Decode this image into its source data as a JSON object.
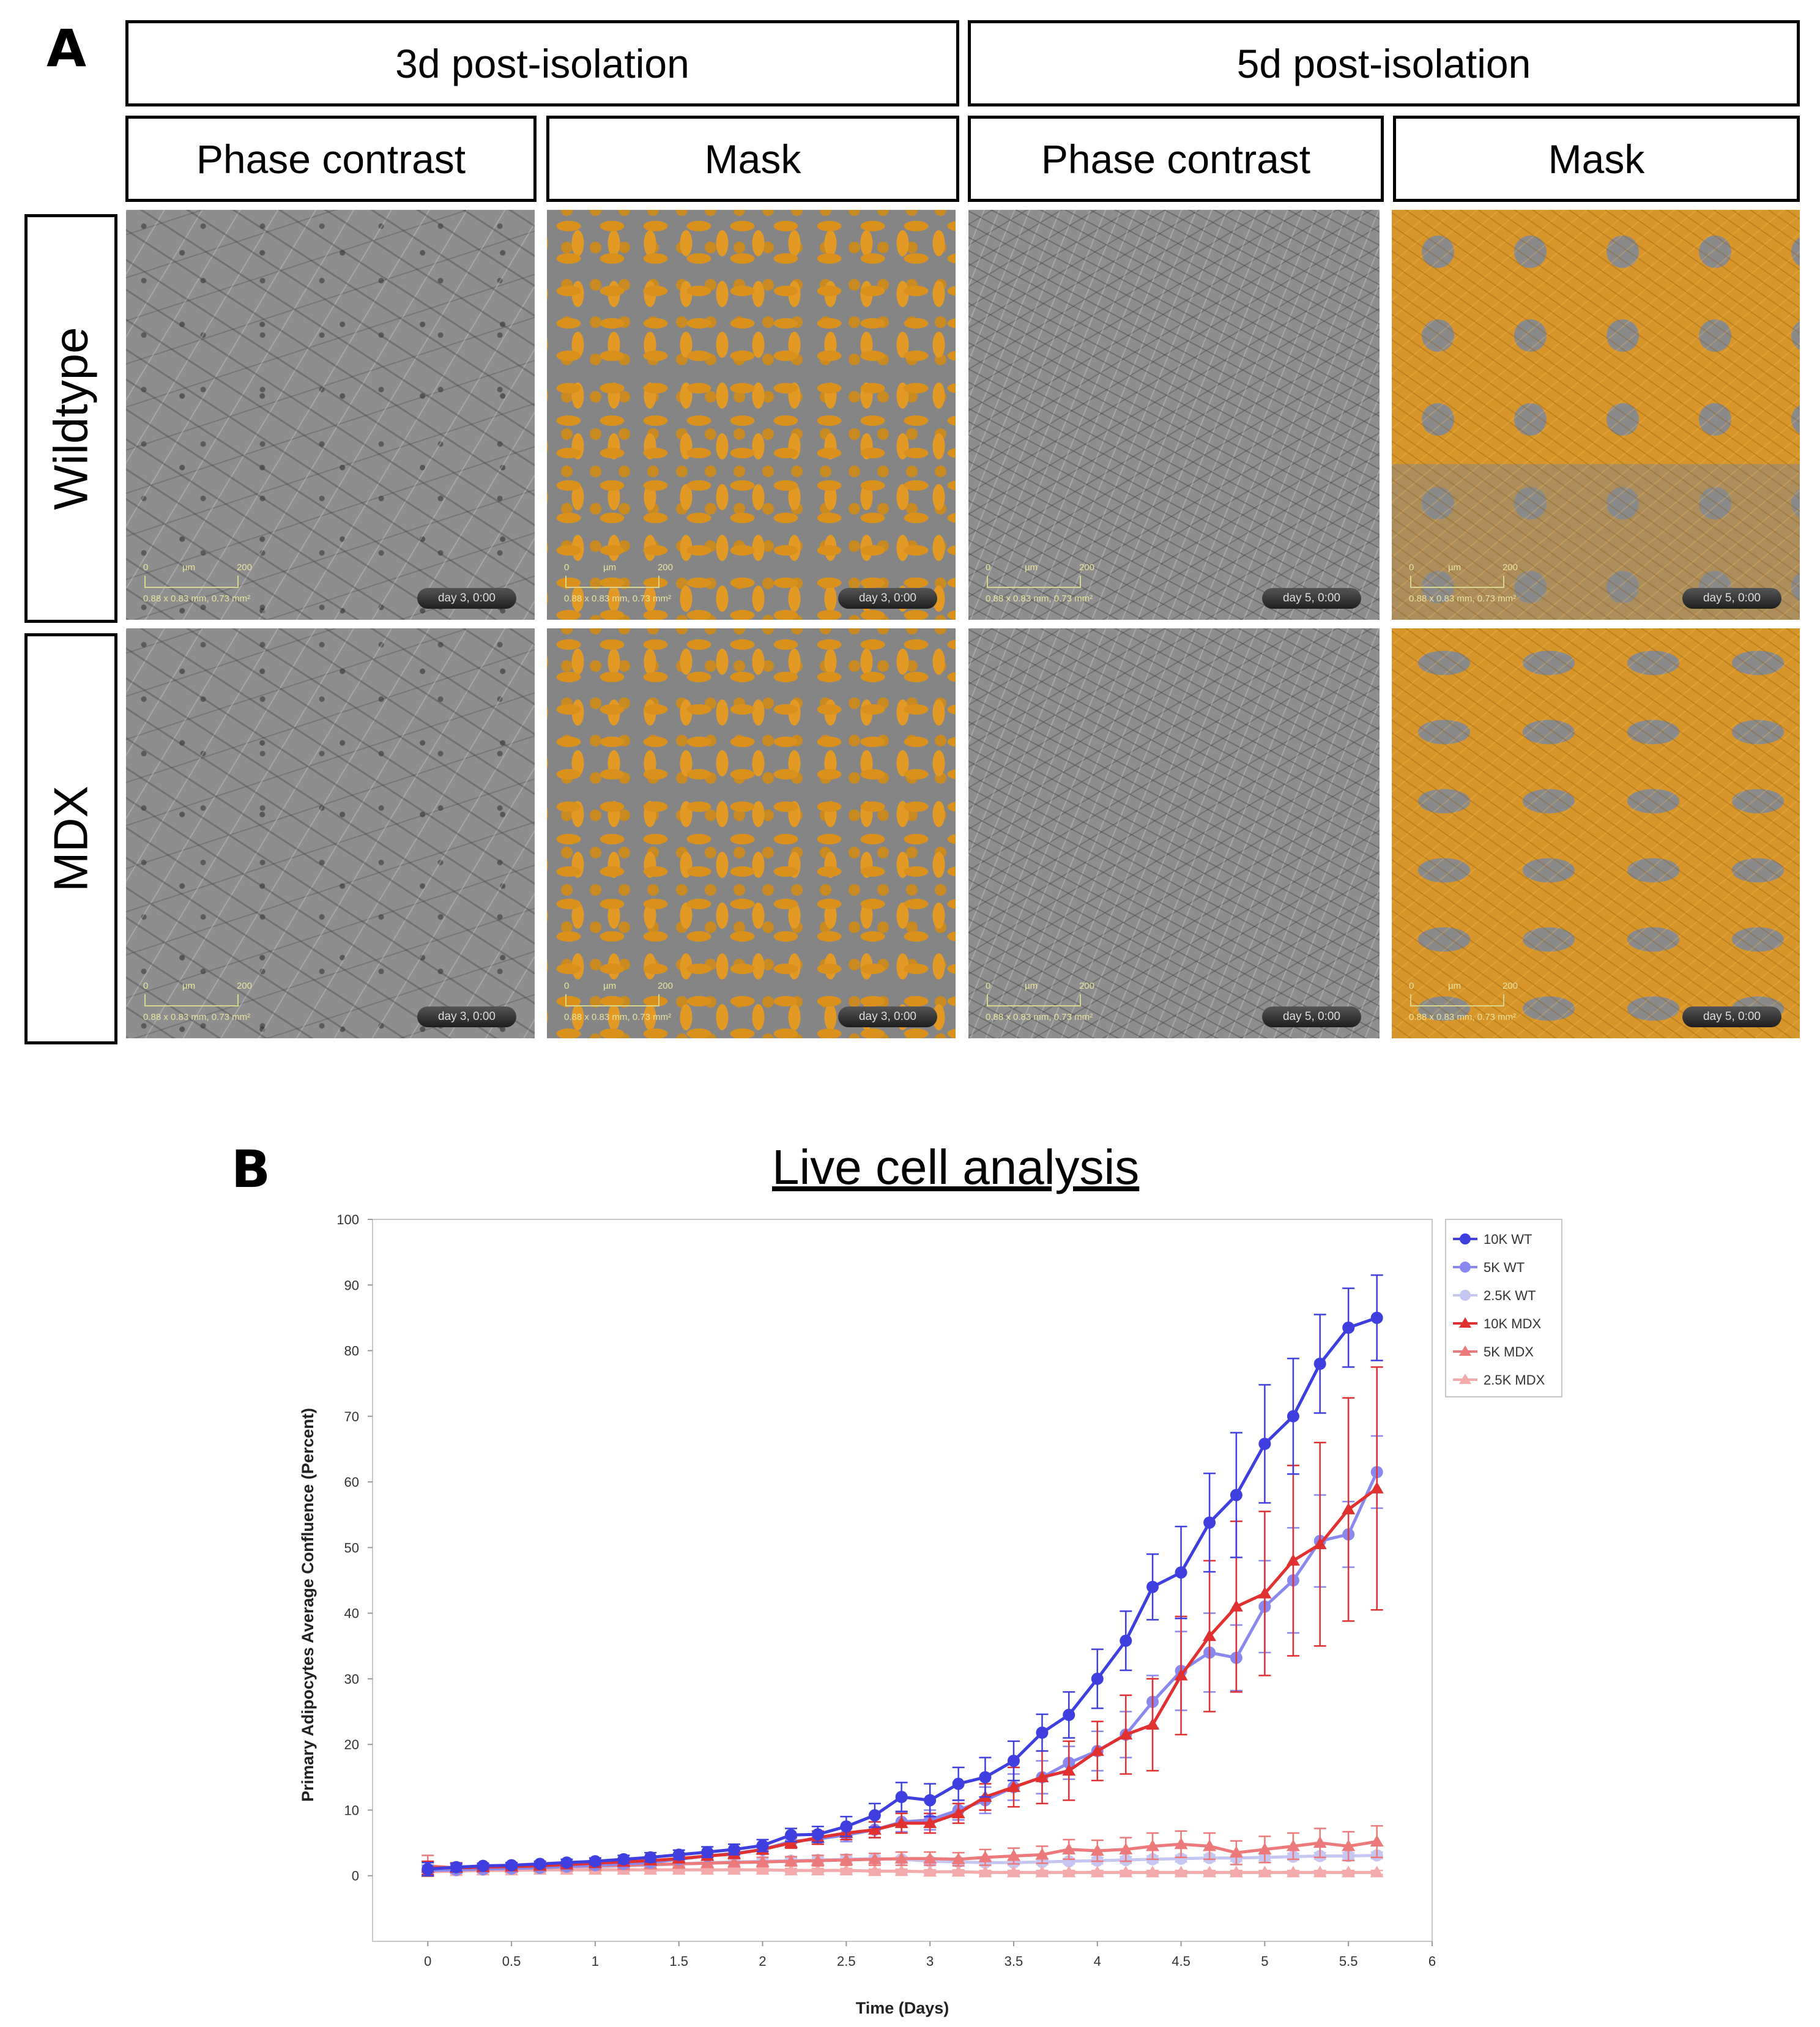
{
  "panel_a": {
    "letter": "A",
    "time_headers": [
      "3d post-isolation",
      "5d post-isolation"
    ],
    "sub_headers": [
      "Phase contrast",
      "Mask",
      "Phase contrast",
      "Mask"
    ],
    "row_labels": [
      "Wildtype",
      "MDX"
    ],
    "scale": {
      "start": "0",
      "unit": "µm",
      "end": "200",
      "dims": "0.88 x 0.83 mm, 0.73 mm²"
    },
    "day_labels": [
      "day 3, 0:00",
      "day 3, 0:00",
      "day 5, 0:00",
      "day 5, 0:00"
    ]
  },
  "panel_b": {
    "letter": "B",
    "title": "Live cell analysis"
  },
  "chart_data": {
    "type": "line",
    "title": "Live cell analysis",
    "xlabel": "Time (Days)",
    "ylabel": "Primary Adipocytes Average Confluence (Percent)",
    "xlim": [
      -0.33,
      6
    ],
    "ylim": [
      -10,
      100
    ],
    "xticks": [
      "0",
      "0.5",
      "1",
      "1.5",
      "2",
      "2.5",
      "3",
      "3.5",
      "4",
      "4.5",
      "5",
      "5.5",
      "6"
    ],
    "yticks": [
      "0",
      "10",
      "20",
      "30",
      "40",
      "50",
      "60",
      "70",
      "80",
      "90",
      "100"
    ],
    "grid": false,
    "legend_position": "top-right",
    "x": [
      0,
      0.17,
      0.33,
      0.5,
      0.67,
      0.83,
      1.0,
      1.17,
      1.33,
      1.5,
      1.67,
      1.83,
      2.0,
      2.17,
      2.33,
      2.5,
      2.67,
      2.83,
      3.0,
      3.17,
      3.33,
      3.5,
      3.67,
      3.83,
      4.0,
      4.17,
      4.33,
      4.5,
      4.67,
      4.83,
      5.0,
      5.17,
      5.33,
      5.5,
      5.67
    ],
    "series": [
      {
        "name": "10K WT",
        "color": "#3f3fe0",
        "marker": "circle",
        "values": [
          1.0,
          1.3,
          1.5,
          1.6,
          1.8,
          2.0,
          2.2,
          2.5,
          2.8,
          3.2,
          3.6,
          4.0,
          4.6,
          6.2,
          6.3,
          7.5,
          9.2,
          12.0,
          11.5,
          14.0,
          15.0,
          17.5,
          21.8,
          24.5,
          30.0,
          35.8,
          44.0,
          46.2,
          53.8,
          58.0,
          65.8,
          70.0,
          78.0,
          83.5,
          85.0
        ],
        "errors": [
          1.0,
          0.6,
          0.4,
          0.4,
          0.4,
          0.5,
          0.5,
          0.6,
          0.7,
          0.7,
          0.8,
          0.8,
          0.9,
          1.0,
          1.2,
          1.5,
          1.8,
          2.2,
          2.5,
          2.5,
          3.0,
          3.0,
          2.8,
          3.5,
          4.5,
          4.5,
          5.0,
          7.0,
          7.5,
          9.5,
          9.0,
          8.8,
          7.5,
          6.0,
          6.5
        ]
      },
      {
        "name": "5K WT",
        "color": "#8888ee",
        "marker": "circle",
        "values": [
          0.8,
          0.9,
          1.0,
          1.1,
          1.2,
          1.4,
          1.6,
          1.8,
          2.0,
          2.5,
          3.0,
          3.4,
          4.0,
          5.2,
          5.6,
          6.2,
          7.0,
          8.2,
          8.5,
          10.0,
          11.5,
          13.5,
          15.0,
          17.2,
          19.0,
          21.5,
          26.5,
          31.2,
          34.0,
          33.2,
          41.0,
          45.0,
          51.0,
          52.0,
          61.5
        ],
        "errors": [
          0.8,
          0.5,
          0.4,
          0.4,
          0.4,
          0.4,
          0.4,
          0.5,
          0.5,
          0.5,
          0.6,
          0.6,
          0.7,
          0.8,
          0.8,
          1.0,
          1.2,
          1.5,
          1.5,
          1.5,
          2.0,
          2.0,
          2.5,
          2.5,
          3.0,
          3.5,
          4.0,
          6.0,
          6.0,
          5.0,
          7.0,
          8.0,
          7.0,
          5.0,
          5.5
        ]
      },
      {
        "name": "2.5K WT",
        "color": "#c6c6f2",
        "marker": "circle",
        "values": [
          0.8,
          0.8,
          0.9,
          1.0,
          1.1,
          1.2,
          1.3,
          1.5,
          1.6,
          1.8,
          2.0,
          2.1,
          2.2,
          2.3,
          2.4,
          2.5,
          2.6,
          2.5,
          2.2,
          2.1,
          2.0,
          2.0,
          2.1,
          2.2,
          2.3,
          2.4,
          2.5,
          2.6,
          2.7,
          2.7,
          2.8,
          2.9,
          3.0,
          3.0,
          3.1
        ],
        "errors": [
          0.6,
          0.4,
          0.3,
          0.3,
          0.3,
          0.3,
          0.3,
          0.3,
          0.3,
          0.4,
          0.4,
          0.4,
          0.4,
          0.4,
          0.4,
          0.4,
          0.4,
          0.4,
          0.4,
          0.4,
          0.4,
          0.4,
          0.4,
          0.4,
          0.5,
          0.5,
          0.5,
          0.5,
          0.5,
          0.5,
          0.5,
          0.5,
          0.5,
          0.5,
          0.5
        ]
      },
      {
        "name": "10K MDX",
        "color": "#e03030",
        "marker": "triangle",
        "values": [
          1.2,
          1.2,
          1.3,
          1.4,
          1.5,
          1.7,
          1.9,
          2.1,
          2.3,
          2.6,
          3.0,
          3.3,
          4.0,
          5.0,
          5.8,
          6.5,
          7.0,
          8.0,
          8.0,
          9.5,
          12.0,
          13.5,
          15.0,
          16.0,
          19.0,
          21.5,
          23.0,
          30.5,
          36.5,
          41.0,
          43.0,
          48.0,
          50.5,
          55.8,
          59.0
        ],
        "errors": [
          1.0,
          0.6,
          0.4,
          0.4,
          0.4,
          0.4,
          0.4,
          0.5,
          0.5,
          0.5,
          0.6,
          0.6,
          0.7,
          0.8,
          1.0,
          1.0,
          1.2,
          1.5,
          1.5,
          1.5,
          2.0,
          3.0,
          4.0,
          4.5,
          4.5,
          6.0,
          7.0,
          9.0,
          11.5,
          13.0,
          12.5,
          14.5,
          15.5,
          17.0,
          18.5
        ]
      },
      {
        "name": "5K MDX",
        "color": "#ec7a7a",
        "marker": "triangle",
        "values": [
          1.5,
          1.2,
          1.2,
          1.2,
          1.3,
          1.4,
          1.5,
          1.6,
          1.7,
          1.8,
          1.9,
          2.0,
          2.1,
          2.2,
          2.3,
          2.4,
          2.5,
          2.6,
          2.6,
          2.5,
          2.8,
          3.0,
          3.2,
          4.0,
          3.8,
          4.0,
          4.5,
          4.8,
          4.5,
          3.5,
          4.0,
          4.5,
          5.0,
          4.5,
          5.2
        ],
        "errors": [
          1.6,
          0.8,
          0.5,
          0.5,
          0.5,
          0.5,
          0.5,
          0.5,
          0.5,
          0.5,
          0.6,
          0.6,
          0.7,
          0.7,
          0.8,
          0.8,
          0.9,
          1.0,
          1.0,
          1.0,
          1.2,
          1.2,
          1.3,
          1.5,
          1.6,
          1.8,
          2.0,
          2.0,
          2.0,
          1.8,
          2.0,
          2.0,
          2.2,
          2.2,
          2.4
        ]
      },
      {
        "name": "2.5K MDX",
        "color": "#f2aaaa",
        "marker": "triangle",
        "values": [
          0.6,
          0.7,
          0.8,
          0.8,
          0.9,
          0.9,
          0.9,
          0.9,
          0.9,
          0.9,
          0.9,
          0.9,
          0.9,
          0.8,
          0.8,
          0.8,
          0.7,
          0.7,
          0.6,
          0.6,
          0.5,
          0.5,
          0.5,
          0.5,
          0.5,
          0.5,
          0.5,
          0.5,
          0.5,
          0.5,
          0.5,
          0.5,
          0.5,
          0.5,
          0.5
        ],
        "errors": [
          0.4,
          0.3,
          0.3,
          0.3,
          0.3,
          0.3,
          0.3,
          0.3,
          0.3,
          0.3,
          0.3,
          0.3,
          0.3,
          0.3,
          0.3,
          0.3,
          0.3,
          0.3,
          0.3,
          0.3,
          0.3,
          0.3,
          0.3,
          0.3,
          0.3,
          0.3,
          0.3,
          0.3,
          0.3,
          0.3,
          0.3,
          0.3,
          0.3,
          0.3,
          0.3
        ]
      }
    ]
  }
}
